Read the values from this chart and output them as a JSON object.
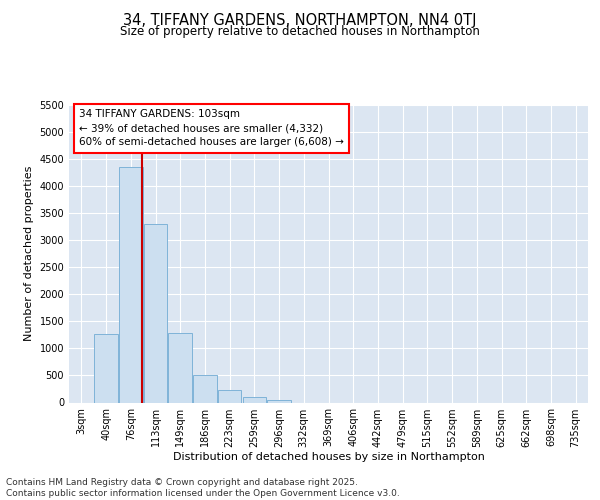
{
  "title": "34, TIFFANY GARDENS, NORTHAMPTON, NN4 0TJ",
  "subtitle": "Size of property relative to detached houses in Northampton",
  "xlabel": "Distribution of detached houses by size in Northampton",
  "ylabel": "Number of detached properties",
  "categories": [
    "3sqm",
    "40sqm",
    "76sqm",
    "113sqm",
    "149sqm",
    "186sqm",
    "223sqm",
    "259sqm",
    "296sqm",
    "332sqm",
    "369sqm",
    "406sqm",
    "442sqm",
    "479sqm",
    "515sqm",
    "552sqm",
    "589sqm",
    "625sqm",
    "662sqm",
    "698sqm",
    "735sqm"
  ],
  "values": [
    0,
    1270,
    4350,
    3300,
    1280,
    500,
    230,
    100,
    50,
    0,
    0,
    0,
    0,
    0,
    0,
    0,
    0,
    0,
    0,
    0,
    0
  ],
  "bar_color": "#ccdff0",
  "bar_edge_color": "#7fb3d8",
  "bar_edge_width": 0.7,
  "ylim": [
    0,
    5500
  ],
  "yticks": [
    0,
    500,
    1000,
    1500,
    2000,
    2500,
    3000,
    3500,
    4000,
    4500,
    5000,
    5500
  ],
  "bg_color": "#dce6f2",
  "grid_color": "#ffffff",
  "annotation_line1": "34 TIFFANY GARDENS: 103sqm",
  "annotation_line2": "← 39% of detached houses are smaller (4,332)",
  "annotation_line3": "60% of semi-detached houses are larger (6,608) →",
  "red_line_color": "#cc0000",
  "footer_text": "Contains HM Land Registry data © Crown copyright and database right 2025.\nContains public sector information licensed under the Open Government Licence v3.0.",
  "title_fontsize": 10.5,
  "subtitle_fontsize": 8.5,
  "axis_label_fontsize": 8,
  "tick_fontsize": 7,
  "annot_fontsize": 7.5,
  "footer_fontsize": 6.5
}
